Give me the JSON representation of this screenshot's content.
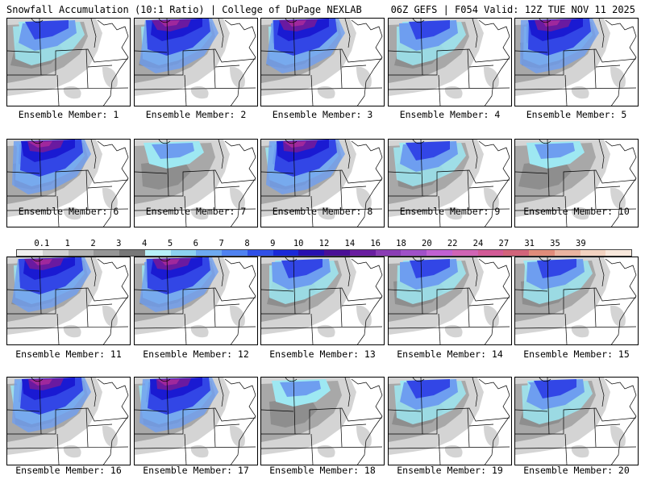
{
  "header": {
    "left": "Snowfall Accumulation (10:1 Ratio) | College of DuPage NEXLAB",
    "right": "06Z GEFS | F054 Valid: 12Z TUE NOV 11 2025"
  },
  "member_prefix": "Ensemble Member:",
  "members": [
    {
      "label": "Ensemble Member: 1",
      "intensity": 2
    },
    {
      "label": "Ensemble Member: 2",
      "intensity": 3
    },
    {
      "label": "Ensemble Member: 3",
      "intensity": 3
    },
    {
      "label": "Ensemble Member: 4",
      "intensity": 2
    },
    {
      "label": "Ensemble Member: 5",
      "intensity": 3
    },
    {
      "label": "Ensemble Member: 6",
      "intensity": 3
    },
    {
      "label": "Ensemble Member: 7",
      "intensity": 1
    },
    {
      "label": "Ensemble Member: 8",
      "intensity": 3
    },
    {
      "label": "Ensemble Member: 9",
      "intensity": 2
    },
    {
      "label": "Ensemble Member: 10",
      "intensity": 1
    },
    {
      "label": "Ensemble Member: 11",
      "intensity": 3
    },
    {
      "label": "Ensemble Member: 12",
      "intensity": 3
    },
    {
      "label": "Ensemble Member: 13",
      "intensity": 2
    },
    {
      "label": "Ensemble Member: 14",
      "intensity": 2
    },
    {
      "label": "Ensemble Member: 15",
      "intensity": 2
    },
    {
      "label": "Ensemble Member: 16",
      "intensity": 3
    },
    {
      "label": "Ensemble Member: 17",
      "intensity": 3
    },
    {
      "label": "Ensemble Member: 18",
      "intensity": 1
    },
    {
      "label": "Ensemble Member: 19",
      "intensity": 2
    },
    {
      "label": "Ensemble Member: 20",
      "intensity": 2
    }
  ],
  "colorbar": {
    "labels": [
      "0.1",
      "1",
      "2",
      "3",
      "4",
      "5",
      "6",
      "7",
      "8",
      "9",
      "10",
      "12",
      "14",
      "16",
      "18",
      "20",
      "22",
      "24",
      "27",
      "31",
      "35",
      "39"
    ],
    "colors": [
      "#f0f0f0",
      "#d2d2d2",
      "#b4b4b4",
      "#969696",
      "#787878",
      "#b8f0f8",
      "#8cd2f0",
      "#6eaaf0",
      "#5082f0",
      "#3050e8",
      "#1a28d8",
      "#2810b0",
      "#4a0f96",
      "#6a1ea0",
      "#8a3cb4",
      "#a050c8",
      "#c060d2",
      "#d064b4",
      "#d25a96",
      "#d2647a",
      "#e08c7a",
      "#eab4a0",
      "#f2d2c0",
      "#f8e8dc"
    ]
  },
  "colors": {
    "light_gray": "#d4d4d4",
    "mid_gray": "#a8a8a8",
    "dark_gray": "#787878",
    "cyan": "#9ee8f2",
    "light_blue": "#6e9ef0",
    "blue": "#3246e6",
    "deep_blue": "#1a1ad2",
    "purple": "#6a1aa0",
    "magenta": "#a0289c"
  }
}
